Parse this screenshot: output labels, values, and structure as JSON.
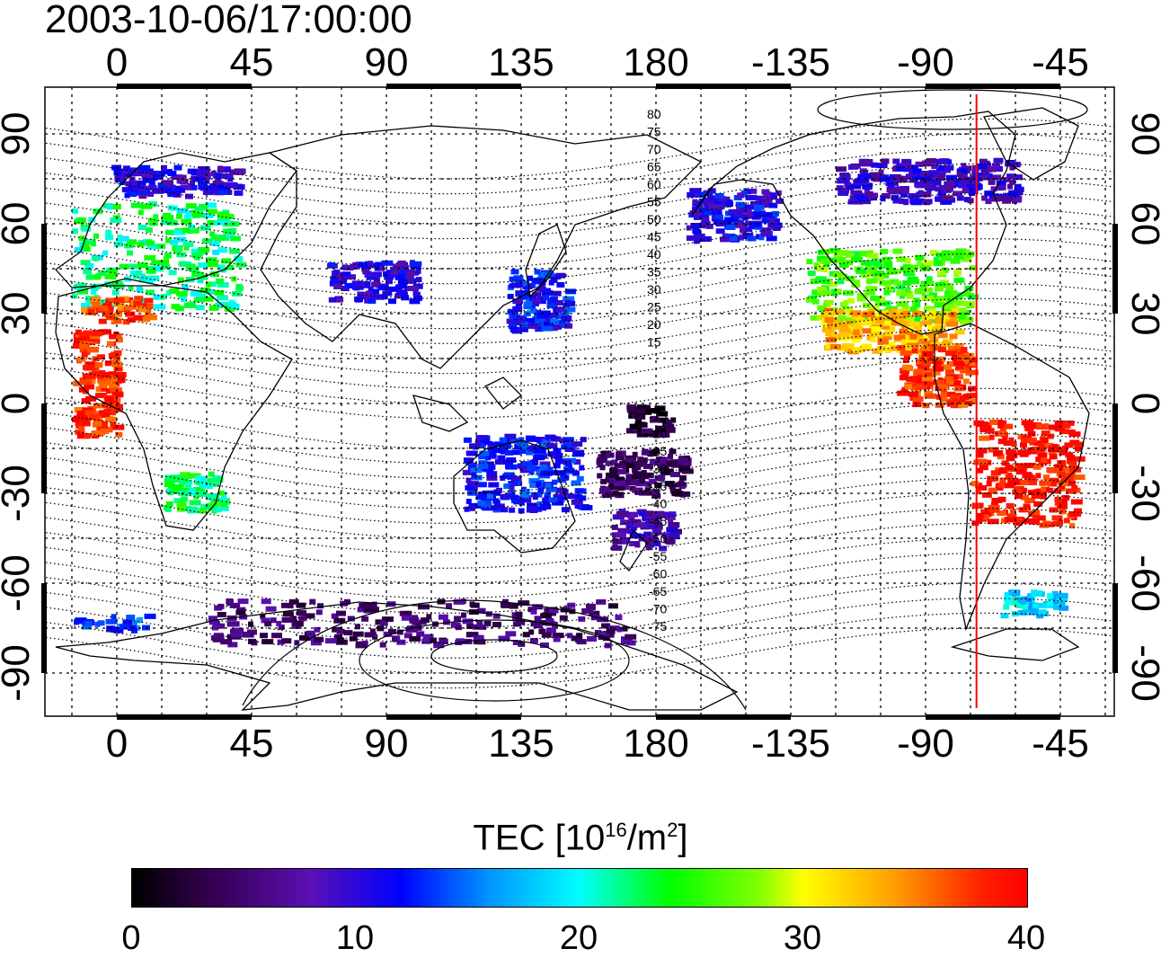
{
  "title": "2003-10-06/17:00:00",
  "axes": {
    "longitude_ticks": [
      "0",
      "45",
      "90",
      "135",
      "180",
      "-135",
      "-90",
      "-45"
    ],
    "latitude_ticks": [
      "90",
      "60",
      "30",
      "0",
      "-30",
      "-60",
      "-90"
    ]
  },
  "contour_labels": {
    "north": [
      "80",
      "75",
      "70",
      "65",
      "60",
      "55",
      "50",
      "45",
      "40",
      "35",
      "30",
      "25",
      "20",
      "15"
    ],
    "south": [
      "-15",
      "-20",
      "-25",
      "-30",
      "-35",
      "-40",
      "-45",
      "-50",
      "-55",
      "-60",
      "-65",
      "-70",
      "-75"
    ]
  },
  "colorbar": {
    "title_prefix": "TEC  [10",
    "title_exp1": "16",
    "title_mid": "/m",
    "title_exp2": "2",
    "title_suffix": "]",
    "ticks": [
      "0",
      "10",
      "20",
      "30",
      "40"
    ],
    "min": 0,
    "max": 40
  },
  "colors": {
    "terminator_line": "#ff0000",
    "coastline": "#000000",
    "grid": "#000000"
  },
  "chart_data": {
    "type": "heatmap",
    "x_unit": "longitude (deg)",
    "y_unit": "latitude (deg)",
    "terminator_longitude": -73,
    "value_unit": "TECU",
    "regions": [
      {
        "lon": [
          -15,
          40
        ],
        "lat": [
          32,
          68
        ],
        "value": 22
      },
      {
        "lon": [
          -12,
          10
        ],
        "lat": [
          28,
          36
        ],
        "value": 37
      },
      {
        "lon": [
          -2,
          40
        ],
        "lat": [
          70,
          80
        ],
        "value": 10
      },
      {
        "lon": [
          130,
          150
        ],
        "lat": [
          25,
          45
        ],
        "value": 12
      },
      {
        "lon": [
          70,
          100
        ],
        "lat": [
          35,
          48
        ],
        "value": 10
      },
      {
        "lon": [
          -130,
          -75
        ],
        "lat": [
          28,
          52
        ],
        "value": 26
      },
      {
        "lon": [
          -125,
          -80
        ],
        "lat": [
          18,
          32
        ],
        "value": 33
      },
      {
        "lon": [
          -75,
          -40
        ],
        "lat": [
          -40,
          -5
        ],
        "value": 39
      },
      {
        "lon": [
          -100,
          -75
        ],
        "lat": [
          0,
          20
        ],
        "value": 38
      },
      {
        "lon": [
          -170,
          -140
        ],
        "lat": [
          55,
          72
        ],
        "value": 11
      },
      {
        "lon": [
          -120,
          -60
        ],
        "lat": [
          68,
          82
        ],
        "value": 9
      },
      {
        "lon": [
          15,
          35
        ],
        "lat": [
          -35,
          -22
        ],
        "value": 23
      },
      {
        "lon": [
          -15,
          0
        ],
        "lat": [
          -10,
          25
        ],
        "value": 38
      },
      {
        "lon": [
          160,
          190
        ],
        "lat": [
          -30,
          -15
        ],
        "value": 4
      },
      {
        "lon": [
          165,
          185
        ],
        "lat": [
          -48,
          -35
        ],
        "value": 8
      },
      {
        "lon": [
          115,
          155
        ],
        "lat": [
          -35,
          -10
        ],
        "value": 12
      },
      {
        "lon": [
          30,
          170
        ],
        "lat": [
          -80,
          -65
        ],
        "value": 5
      },
      {
        "lon": [
          -65,
          -45
        ],
        "lat": [
          -70,
          -62
        ],
        "value": 18
      },
      {
        "lon": [
          -15,
          10
        ],
        "lat": [
          -75,
          -70
        ],
        "value": 14
      },
      {
        "lon": [
          170,
          185
        ],
        "lat": [
          -10,
          0
        ],
        "value": 2
      }
    ]
  }
}
